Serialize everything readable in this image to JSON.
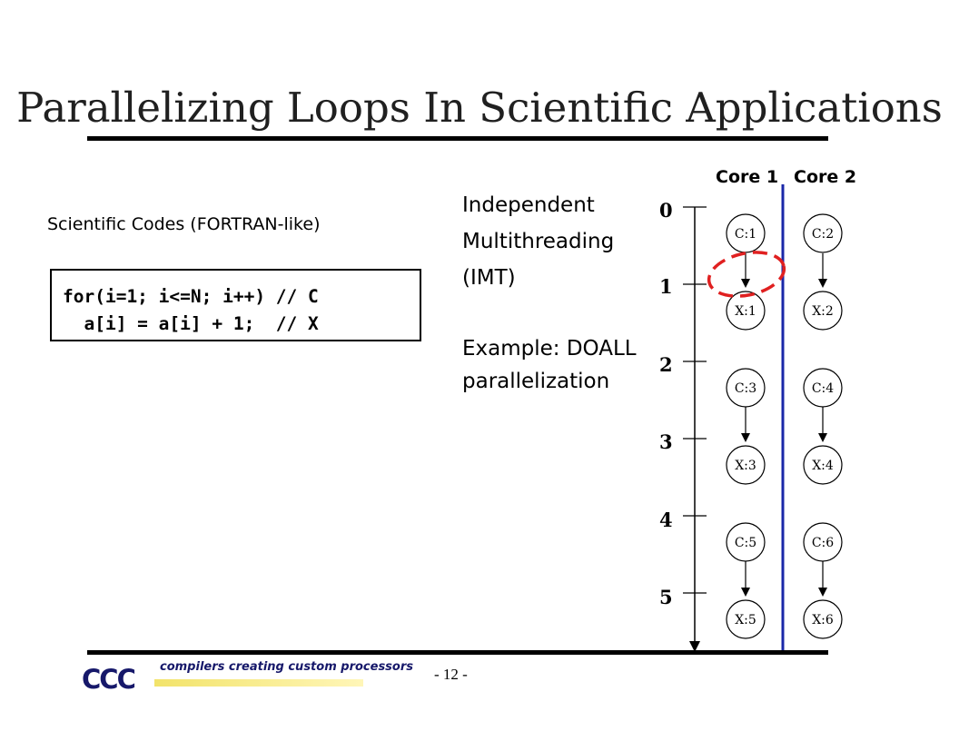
{
  "slide": {
    "title": "Parallelizing Loops In Scientific Applications",
    "subtitle": "Scientific Codes (FORTRAN-like)",
    "page_number": "- 12 -"
  },
  "code": {
    "line1": "for(i=1; i<=N; i++) // C",
    "line2": "  a[i] = a[i] + 1;  // X"
  },
  "description": {
    "lines": [
      "Independent",
      "Multithreading",
      "(IMT)",
      "",
      "Example: DOALL",
      "parallelization"
    ]
  },
  "cores": [
    "Core 1",
    "Core 2"
  ],
  "time_ticks": [
    "0",
    "1",
    "2",
    "3",
    "4",
    "5"
  ],
  "nodes": {
    "core1": [
      "C:1",
      "X:1",
      "C:3",
      "X:3",
      "C:5",
      "X:5"
    ],
    "core2": [
      "C:2",
      "X:2",
      "C:4",
      "X:4",
      "C:6",
      "X:6"
    ]
  },
  "colors": {
    "core_divider": "#1a27a8",
    "highlight_ellipse": "#e02020",
    "logo": "#16186a"
  },
  "logo": {
    "mark": "CCC",
    "tagline": "compilers creating custom processors"
  }
}
